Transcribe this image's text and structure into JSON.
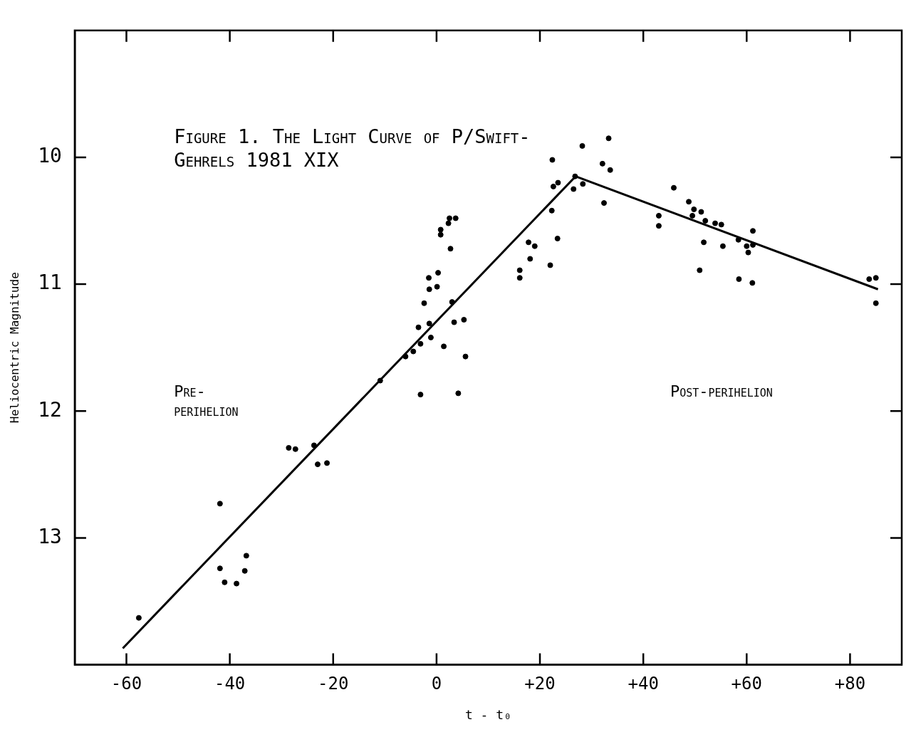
{
  "chart_data": {
    "type": "scatter",
    "title": "Figure 1. The Light Curve of P/Swift-Gehrels 1981 XIX",
    "xlabel": "t - t₀",
    "ylabel": "Heliocentric Magnitude",
    "annotations": [
      "Pre-perihelion",
      "Post-perihelion"
    ],
    "xlim": [
      -70,
      90
    ],
    "xticks": [
      -60,
      -40,
      -20,
      0,
      {
        "value": 20,
        "label": "+20"
      },
      {
        "value": 40,
        "label": "+40"
      },
      {
        "value": 60,
        "label": "+60"
      },
      {
        "value": 80,
        "label": "+80"
      }
    ],
    "ylim": [
      14,
      9
    ],
    "yticks": [
      10,
      11,
      12,
      13
    ],
    "grid": false,
    "legend": false,
    "marker": "circle",
    "series": [
      {
        "color": "#000000",
        "x": [
          -57.6,
          -41.9,
          -41.9,
          -41,
          -38.7,
          -37.1,
          -36.8,
          -28.6,
          -27.3,
          -23.7,
          -23,
          -21.2,
          -10.9,
          -6,
          -4.5,
          -3.1,
          -3.5,
          -1.1,
          -1.4,
          -2.4,
          -1.4,
          0.1,
          -1.5,
          0.3,
          3,
          3.4,
          5.3,
          1.4,
          5.6,
          -3.1,
          4.2,
          0.8,
          0.8,
          2.7,
          2.3,
          2.5,
          3.7,
          16.1,
          16.1,
          17.8,
          19,
          18.1,
          22,
          23.4,
          22.3,
          22.6,
          23.5,
          22.4,
          26.5,
          26.8,
          28.3,
          28.2,
          33.3,
          32.1,
          33.6,
          32.4,
          45.9,
          43,
          43,
          48.8,
          49.8,
          49.5,
          51.2,
          52,
          53.9,
          55.1,
          51.7,
          55.4,
          50.9,
          58.4,
          61.2,
          60,
          61.2,
          60.3,
          58.5,
          61.1,
          83.7,
          85,
          85
        ],
        "values": [
          13.63,
          12.73,
          13.24,
          13.35,
          13.36,
          13.26,
          13.14,
          12.29,
          12.3,
          12.27,
          12.42,
          12.41,
          11.76,
          11.57,
          11.53,
          11.47,
          11.34,
          11.42,
          11.31,
          11.15,
          11.04,
          11.02,
          10.95,
          10.91,
          11.14,
          11.3,
          11.28,
          11.49,
          11.57,
          11.87,
          11.86,
          10.61,
          10.57,
          10.72,
          10.52,
          10.48,
          10.48,
          10.95,
          10.89,
          10.67,
          10.7,
          10.8,
          10.85,
          10.64,
          10.42,
          10.23,
          10.2,
          10.02,
          10.25,
          10.15,
          10.21,
          9.91,
          9.85,
          10.05,
          10.1,
          10.36,
          10.24,
          10.46,
          10.54,
          10.35,
          10.41,
          10.46,
          10.43,
          10.5,
          10.52,
          10.53,
          10.67,
          10.7,
          10.89,
          10.65,
          10.58,
          10.7,
          10.69,
          10.75,
          10.96,
          10.99,
          10.96,
          10.95,
          11.15
        ]
      },
      {
        "type": "line",
        "color": "#000000",
        "marker": "none",
        "x": [
          -60.7,
          26.9,
          85.4
        ],
        "values": [
          13.87,
          10.15,
          11.04
        ]
      }
    ]
  }
}
